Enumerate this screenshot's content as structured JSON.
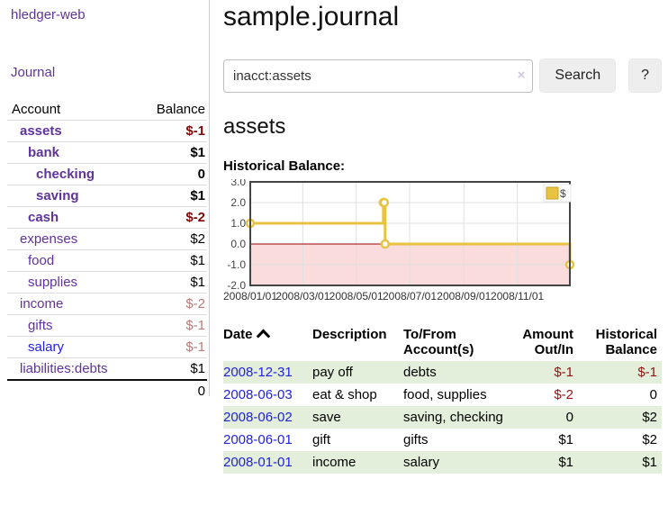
{
  "app": {
    "brand": "hledger-web",
    "nav_journal": "Journal"
  },
  "sidebar": {
    "headers": {
      "account": "Account",
      "balance": "Balance"
    },
    "accounts": [
      {
        "name": "assets",
        "indent": 1,
        "bold": true,
        "balance": "$-1",
        "balance_style": "neg-strong",
        "link_color": "purple"
      },
      {
        "name": "bank",
        "indent": 2,
        "bold": true,
        "balance": "$1",
        "balance_style": "pos",
        "link_color": "purple"
      },
      {
        "name": "checking",
        "indent": 3,
        "bold": true,
        "balance": "0",
        "balance_style": "pos",
        "link_color": "purple"
      },
      {
        "name": "saving",
        "indent": 3,
        "bold": true,
        "balance": "$1",
        "balance_style": "pos",
        "link_color": "purple"
      },
      {
        "name": "cash",
        "indent": 2,
        "bold": true,
        "balance": "$-2",
        "balance_style": "neg-strong",
        "link_color": "purple"
      },
      {
        "name": "expenses",
        "indent": 1,
        "bold": false,
        "balance": "$2",
        "balance_style": "pos",
        "link_color": "purple"
      },
      {
        "name": "food",
        "indent": 2,
        "bold": false,
        "balance": "$1",
        "balance_style": "pos",
        "link_color": "purple"
      },
      {
        "name": "supplies",
        "indent": 2,
        "bold": false,
        "balance": "$1",
        "balance_style": "pos",
        "link_color": "purple"
      },
      {
        "name": "income",
        "indent": 1,
        "bold": false,
        "balance": "$-2",
        "balance_style": "neg-soft",
        "link_color": "purple"
      },
      {
        "name": "gifts",
        "indent": 2,
        "bold": false,
        "balance": "$-1",
        "balance_style": "neg-soft",
        "link_color": "purple"
      },
      {
        "name": "salary",
        "indent": 2,
        "bold": false,
        "balance": "$-1",
        "balance_style": "neg-soft",
        "link_color": "blue"
      },
      {
        "name": "liabilities:debts",
        "indent": 1,
        "bold": false,
        "balance": "$1",
        "balance_style": "pos",
        "link_color": "purple"
      }
    ],
    "total": "0"
  },
  "header": {
    "title": "sample.journal"
  },
  "search": {
    "value": "inacct:assets",
    "clear_icon": "×",
    "button_label": "Search",
    "help_label": "?"
  },
  "account_page": {
    "heading": "assets",
    "chart_title": "Historical Balance:"
  },
  "chart_data": {
    "type": "line",
    "step": true,
    "title": "Historical Balance",
    "legend": [
      {
        "label": "$",
        "color": "#e8c342"
      }
    ],
    "x_range": [
      "2008-01-01",
      "2008-12-31"
    ],
    "ylim": [
      -2,
      3
    ],
    "y_ticks": [
      "3.0",
      "2.0",
      "1.0",
      "0.0",
      "-1.0",
      "-2.0"
    ],
    "x_ticks": [
      "2008/01/01",
      "2008/03/01",
      "2008/05/01",
      "2008/07/01",
      "2008/09/01",
      "2008/11/01"
    ],
    "points": [
      {
        "date": "2008-01-01",
        "value": 1
      },
      {
        "date": "2008-06-01",
        "value": 2
      },
      {
        "date": "2008-06-02",
        "value": 2
      },
      {
        "date": "2008-06-03",
        "value": 0
      },
      {
        "date": "2008-12-31",
        "value": -1
      }
    ],
    "colors": {
      "line": "#e8c342",
      "marker_fill": "#ffffff",
      "grid": "#e0e0e0",
      "border": "#444444",
      "negative_region": "#fadcdc",
      "zero_line": "#9b0000",
      "tick_text": "#444444"
    }
  },
  "register": {
    "headers": {
      "date": "Date",
      "description": "Description",
      "accounts": "To/From Account(s)",
      "amount": "Amount Out/In",
      "balance": "Historical Balance"
    },
    "rows": [
      {
        "date": "2008-12-31",
        "description": "pay off",
        "accounts": "debts",
        "amount": "$-1",
        "amount_neg": true,
        "balance": "$-1",
        "balance_neg": true,
        "striped": true
      },
      {
        "date": "2008-06-03",
        "description": "eat & shop",
        "accounts": "food, supplies",
        "amount": "$-2",
        "amount_neg": true,
        "balance": "0",
        "balance_neg": false,
        "striped": false
      },
      {
        "date": "2008-06-02",
        "description": "save",
        "accounts": "saving, checking",
        "amount": "0",
        "amount_neg": false,
        "balance": "$2",
        "balance_neg": false,
        "striped": true
      },
      {
        "date": "2008-06-01",
        "description": "gift",
        "accounts": "gifts",
        "amount": "$1",
        "amount_neg": false,
        "balance": "$2",
        "balance_neg": false,
        "striped": false
      },
      {
        "date": "2008-01-01",
        "description": "income",
        "accounts": "salary",
        "amount": "$1",
        "amount_neg": false,
        "balance": "$1",
        "balance_neg": false,
        "striped": true
      }
    ]
  }
}
